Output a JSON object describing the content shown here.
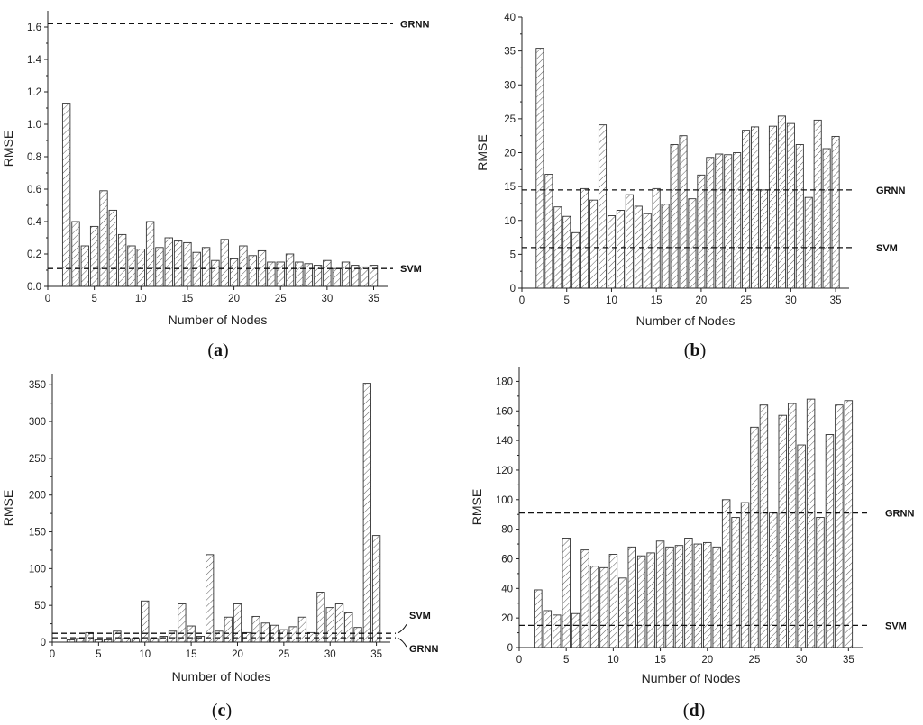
{
  "chart_data": [
    {
      "panel": "a",
      "caption_letter": "a",
      "type": "bar",
      "xlabel": "Number of Nodes",
      "ylabel": "RMSE",
      "xlim": [
        0,
        36.5
      ],
      "ylim": [
        0,
        1.7
      ],
      "xticks": [
        0,
        5,
        10,
        15,
        20,
        25,
        30,
        35
      ],
      "yticks": [
        0.0,
        0.2,
        0.4,
        0.6,
        0.8,
        1.0,
        1.2,
        1.4,
        1.6
      ],
      "ytick_labels": [
        "0.0",
        "0.2",
        "0.4",
        "0.6",
        "0.8",
        "1.0",
        "1.2",
        "1.4",
        "1.6"
      ],
      "x": [
        2,
        3,
        4,
        5,
        6,
        7,
        8,
        9,
        10,
        11,
        12,
        13,
        14,
        15,
        16,
        17,
        18,
        19,
        20,
        21,
        22,
        23,
        24,
        25,
        26,
        27,
        28,
        29,
        30,
        31,
        32,
        33,
        34,
        35
      ],
      "values": [
        1.13,
        0.4,
        0.25,
        0.37,
        0.59,
        0.47,
        0.32,
        0.25,
        0.23,
        0.4,
        0.24,
        0.3,
        0.28,
        0.27,
        0.21,
        0.24,
        0.16,
        0.29,
        0.17,
        0.25,
        0.19,
        0.22,
        0.15,
        0.15,
        0.2,
        0.15,
        0.14,
        0.13,
        0.16,
        0.11,
        0.15,
        0.13,
        0.12,
        0.13
      ],
      "reference_lines": [
        {
          "name": "GRNN",
          "value": 1.62
        },
        {
          "name": "SVM",
          "value": 0.11
        }
      ]
    },
    {
      "panel": "b",
      "caption_letter": "b",
      "type": "bar",
      "xlabel": "Number of Nodes",
      "ylabel": "RMSE",
      "xlim": [
        0,
        36.5
      ],
      "ylim": [
        0,
        40
      ],
      "xticks": [
        0,
        5,
        10,
        15,
        20,
        25,
        30,
        35
      ],
      "yticks": [
        0,
        5,
        10,
        15,
        20,
        25,
        30,
        35,
        40
      ],
      "ytick_labels": [
        "0",
        "5",
        "10",
        "15",
        "20",
        "25",
        "30",
        "35",
        "40"
      ],
      "x": [
        2,
        3,
        4,
        5,
        6,
        7,
        8,
        9,
        10,
        11,
        12,
        13,
        14,
        15,
        16,
        17,
        18,
        19,
        20,
        21,
        22,
        23,
        24,
        25,
        26,
        27,
        28,
        29,
        30,
        31,
        32,
        33,
        34,
        35
      ],
      "values": [
        35.4,
        16.8,
        12.0,
        10.6,
        8.2,
        14.7,
        13.0,
        24.1,
        10.7,
        11.5,
        13.8,
        12.1,
        11.0,
        14.7,
        12.4,
        21.2,
        22.5,
        13.2,
        16.7,
        19.3,
        19.8,
        19.7,
        20.0,
        23.3,
        23.8,
        14.5,
        23.9,
        25.4,
        24.3,
        21.2,
        13.4,
        24.8,
        20.6,
        22.4
      ],
      "reference_lines": [
        {
          "name": "GRNN",
          "value": 14.5
        },
        {
          "name": "SVM",
          "value": 6.0
        }
      ]
    },
    {
      "panel": "c",
      "caption_letter": "c",
      "type": "bar",
      "xlabel": "Number of Nodes",
      "ylabel": "RMSE",
      "xlim": [
        0,
        36.5
      ],
      "ylim": [
        0,
        365
      ],
      "xticks": [
        0,
        5,
        10,
        15,
        20,
        25,
        30,
        35
      ],
      "yticks": [
        0,
        50,
        100,
        150,
        200,
        250,
        300,
        350
      ],
      "ytick_labels": [
        "0",
        "50",
        "100",
        "150",
        "200",
        "250",
        "300",
        "350"
      ],
      "x": [
        2,
        3,
        4,
        5,
        6,
        7,
        8,
        9,
        10,
        11,
        12,
        13,
        14,
        15,
        16,
        17,
        18,
        19,
        20,
        21,
        22,
        23,
        24,
        25,
        26,
        27,
        28,
        29,
        30,
        31,
        32,
        33,
        34,
        35
      ],
      "values": [
        3,
        5,
        13,
        3,
        3,
        15,
        5,
        5,
        56,
        5,
        8,
        15,
        52,
        22,
        8,
        119,
        15,
        34,
        52,
        13,
        35,
        26,
        23,
        17,
        21,
        34,
        13,
        68,
        47,
        52,
        40,
        20,
        352,
        145
      ],
      "reference_lines": [
        {
          "name": "SVM",
          "value": 12
        },
        {
          "name": "GRNN",
          "value": 6
        }
      ]
    },
    {
      "panel": "d",
      "caption_letter": "d",
      "type": "bar",
      "xlabel": "Number of Nodes",
      "ylabel": "RMSE",
      "xlim": [
        0,
        36.5
      ],
      "ylim": [
        0,
        190
      ],
      "xticks": [
        0,
        5,
        10,
        15,
        20,
        25,
        30,
        35
      ],
      "yticks": [
        0,
        20,
        40,
        60,
        80,
        100,
        120,
        140,
        160,
        180
      ],
      "ytick_labels": [
        "0",
        "20",
        "40",
        "60",
        "80",
        "100",
        "120",
        "140",
        "160",
        "180"
      ],
      "x": [
        2,
        3,
        4,
        5,
        6,
        7,
        8,
        9,
        10,
        11,
        12,
        13,
        14,
        15,
        16,
        17,
        18,
        19,
        20,
        21,
        22,
        23,
        24,
        25,
        26,
        27,
        28,
        29,
        30,
        31,
        32,
        33,
        34,
        35
      ],
      "values": [
        39,
        25,
        22,
        74,
        23,
        66,
        55,
        54,
        63,
        47,
        68,
        62,
        64,
        72,
        68,
        69,
        74,
        70,
        71,
        68,
        100,
        88,
        98,
        149,
        164,
        91,
        157,
        165,
        137,
        168,
        88,
        144,
        164,
        167
      ],
      "reference_lines": [
        {
          "name": "GRNN",
          "value": 91
        },
        {
          "name": "SVM",
          "value": 15
        }
      ]
    }
  ]
}
